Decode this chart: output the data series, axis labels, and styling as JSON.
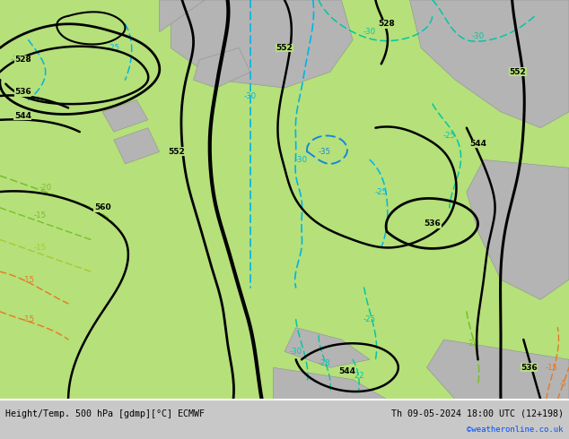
{
  "title_left": "Height/Temp. 500 hPa [gdmp][°C] ECMWF",
  "title_right": "Th 09-05-2024 18:00 UTC (12+198)",
  "credit": "©weatheronline.co.uk",
  "bg_color": "#c8c8c8",
  "map_green": "#b5e07a",
  "map_land_gray": "#b4b4b4",
  "contour_color": "#000000",
  "temp_cyan_color": "#00b4e6",
  "temp_teal_color": "#00c8a0",
  "temp_green_color": "#78be28",
  "temp_yellow_color": "#c8c800",
  "temp_orange_color": "#e87820",
  "label_fontsize": 6.5,
  "title_fontsize": 7.2,
  "credit_fontsize": 6.5,
  "credit_color": "#0050ff"
}
